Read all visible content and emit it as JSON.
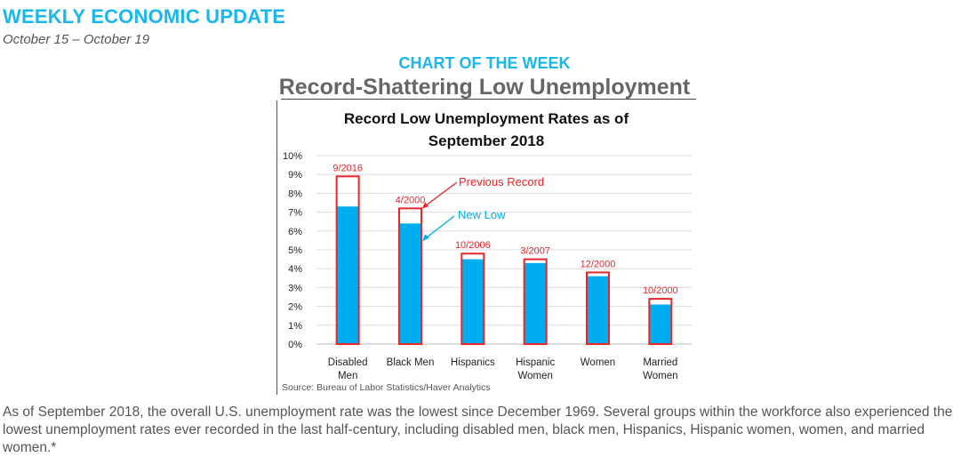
{
  "header": {
    "title": "WEEKLY ECONOMIC UPDATE",
    "dates": "October 15 – October 19"
  },
  "section": {
    "label": "CHART OF THE WEEK",
    "title": "Record-Shattering Low Unemployment"
  },
  "colors": {
    "accent": "#1ab7ea",
    "bar": "#00aeef",
    "record": "#e8262b"
  },
  "chart_data": {
    "type": "bar",
    "title_lines": [
      "Record Low Unemployment Rates as of",
      "September 2018"
    ],
    "categories": [
      [
        "Disabled",
        "Men"
      ],
      [
        "Black Men"
      ],
      [
        "Hispanics"
      ],
      [
        "Hispanic",
        "Women"
      ],
      [
        "Women"
      ],
      [
        "Married",
        "Women"
      ]
    ],
    "series": [
      {
        "name": "New Low",
        "values": [
          7.3,
          6.4,
          4.5,
          4.3,
          3.6,
          2.1
        ]
      },
      {
        "name": "Previous Record",
        "values": [
          8.9,
          7.2,
          4.8,
          4.5,
          3.8,
          2.4
        ]
      }
    ],
    "record_dates": [
      "9/2016",
      "4/2000",
      "10/2006",
      "3/2007",
      "12/2000",
      "10/2000"
    ],
    "annotations": {
      "previous_record": "Previous Record",
      "new_low": "New Low"
    },
    "ylim": [
      0,
      10
    ],
    "yticks": [
      "0%",
      "1%",
      "2%",
      "3%",
      "4%",
      "5%",
      "6%",
      "7%",
      "8%",
      "9%",
      "10%"
    ],
    "grid": true,
    "source": "Source: Bureau of Labor Statistics/Haver Analytics"
  },
  "body_text": "As of September 2018, the overall U.S. unemployment rate was the lowest since December 1969. Several groups within the workforce also experienced the lowest unemployment rates ever recorded in the last half-century, including disabled men, black men, Hispanics, Hispanic women, women, and married women.*"
}
